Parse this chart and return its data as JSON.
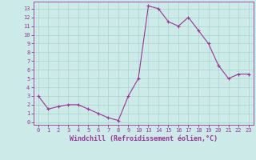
{
  "x_indices": [
    0,
    1,
    2,
    3,
    4,
    5,
    6,
    7,
    8,
    9,
    10,
    11,
    12,
    13,
    14,
    15,
    16,
    17,
    18,
    19,
    20,
    21
  ],
  "x_labels": [
    "0",
    "1",
    "2",
    "3",
    "4",
    "5",
    "6",
    "7",
    "8",
    "9",
    "10",
    "13",
    "14",
    "15",
    "16",
    "17",
    "18",
    "19",
    "20",
    "21",
    "22",
    "23"
  ],
  "y": [
    3.0,
    1.5,
    1.8,
    2.0,
    2.0,
    1.5,
    1.0,
    0.5,
    0.2,
    3.0,
    5.0,
    13.3,
    13.0,
    11.5,
    11.0,
    12.0,
    10.5,
    9.0,
    6.5,
    5.0,
    5.5,
    5.5
  ],
  "line_color": "#993399",
  "marker": "+",
  "marker_size": 3,
  "marker_linewidth": 0.8,
  "linewidth": 0.8,
  "bg_color": "#cceae7",
  "grid_color": "#aad4d0",
  "tick_color": "#993399",
  "label_color": "#993399",
  "xlabel": "Windchill (Refroidissement éolien,°C)",
  "yticks": [
    0,
    1,
    2,
    3,
    4,
    5,
    6,
    7,
    8,
    9,
    10,
    11,
    12,
    13
  ],
  "ylim": [
    -0.3,
    13.8
  ],
  "xlim": [
    -0.5,
    21.5
  ],
  "tick_fontsize": 5.0,
  "xlabel_fontsize": 6.0
}
